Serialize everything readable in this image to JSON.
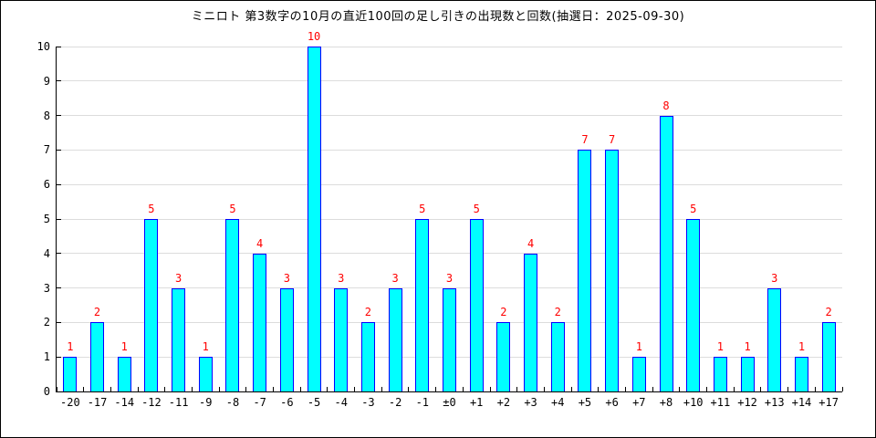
{
  "title": "ミニロト 第3数字の10月の直近100回の足し引きの出現数と回数(抽選日：2025-09-30)",
  "colors": {
    "bar_fill": "#00ffff",
    "bar_border": "#0000ff",
    "value_label": "#ff0000",
    "grid": "#dcdcdc",
    "axis": "#000000",
    "background": "#ffffff"
  },
  "chart_data": {
    "type": "bar",
    "title": "ミニロト 第3数字の10月の直近100回の足し引きの出現数と回数(抽選日：2025-09-30)",
    "categories": [
      "-20",
      "-17",
      "-14",
      "-12",
      "-11",
      "-9",
      "-8",
      "-7",
      "-6",
      "-5",
      "-4",
      "-3",
      "-2",
      "-1",
      "±0",
      "+1",
      "+2",
      "+3",
      "+4",
      "+5",
      "+6",
      "+7",
      "+8",
      "+10",
      "+11",
      "+12",
      "+13",
      "+14",
      "+17"
    ],
    "values": [
      1,
      2,
      1,
      5,
      3,
      1,
      5,
      4,
      3,
      10,
      3,
      2,
      3,
      5,
      3,
      5,
      2,
      4,
      2,
      7,
      7,
      1,
      8,
      5,
      1,
      1,
      3,
      1,
      2
    ],
    "xlabel": "",
    "ylabel": "",
    "ylim": [
      0,
      10
    ],
    "yticks": [
      0,
      1,
      2,
      3,
      4,
      5,
      6,
      7,
      8,
      9,
      10
    ],
    "grid": "horizontal",
    "legend": "none",
    "bar_value_labels": true
  }
}
